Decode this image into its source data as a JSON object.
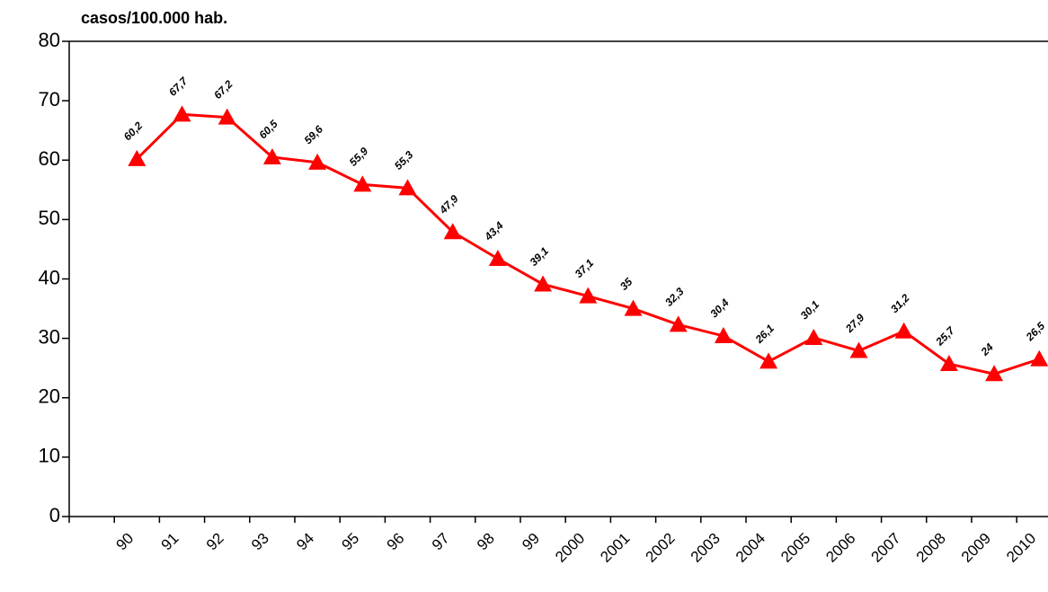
{
  "chart_data": {
    "type": "line",
    "y_axis_label": "casos/100.000 hab.",
    "categories": [
      null,
      "90",
      "91",
      "92",
      "93",
      "94",
      "95",
      "96",
      "97",
      "98",
      "99",
      "2000",
      "2001",
      "2002",
      "2003",
      "2004",
      "2005",
      "2006",
      "2007",
      "2008",
      "2009",
      "2010"
    ],
    "series": [
      {
        "name": "casos",
        "color": "#ff0000",
        "values": [
          null,
          60.2,
          67.7,
          67.2,
          60.5,
          59.6,
          55.9,
          55.3,
          47.9,
          43.4,
          39.1,
          37.1,
          35,
          32.3,
          30.4,
          26.1,
          30.1,
          27.9,
          31.2,
          25.7,
          24,
          26.5
        ],
        "value_labels": [
          null,
          "60,2",
          "67,7",
          "67,2",
          "60,5",
          "59,6",
          "55,9",
          "55,3",
          "47,9",
          "43,4",
          "39,1",
          "37,1",
          "35",
          "32,3",
          "30,4",
          "26,1",
          "30,1",
          "27,9",
          "31,2",
          "25,7",
          "24",
          "26,5"
        ]
      }
    ],
    "ylim": [
      0,
      80
    ],
    "yticks": [
      0,
      10,
      20,
      30,
      40,
      50,
      60,
      70,
      80
    ],
    "grid": false
  }
}
